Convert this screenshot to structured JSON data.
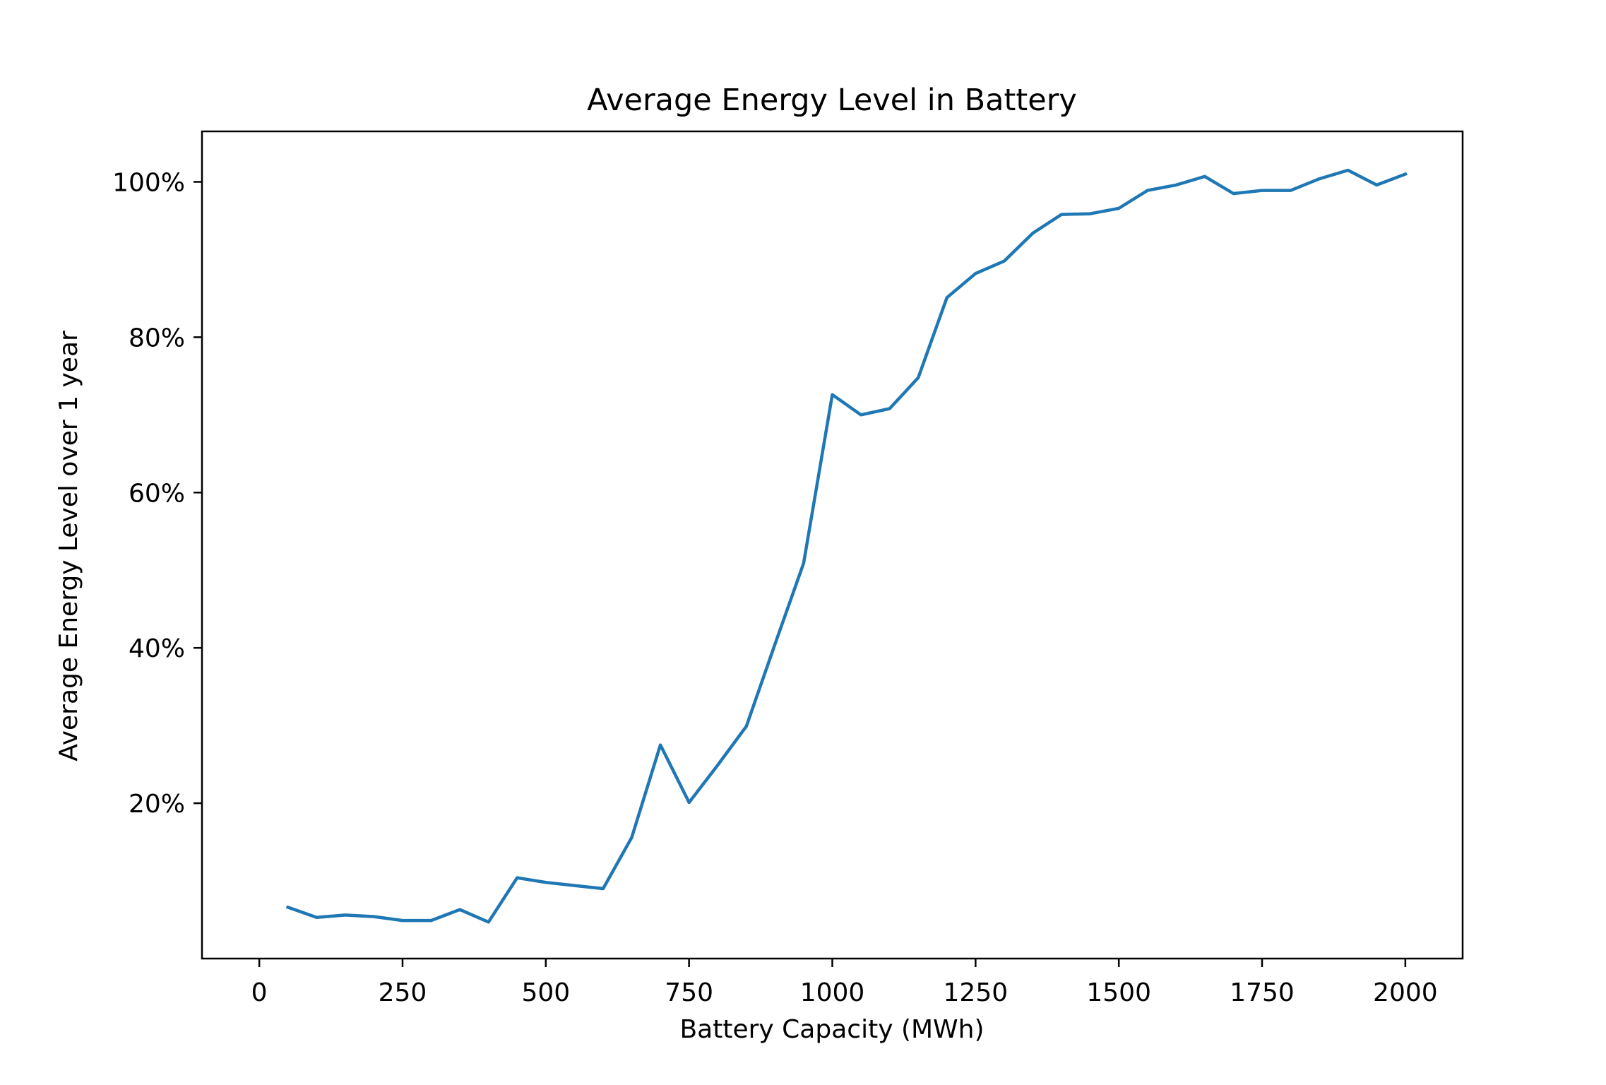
{
  "chart_data": {
    "type": "line",
    "title": "Average Energy Level in Battery",
    "xlabel": "Battery Capacity (MWh)",
    "ylabel": "Average Energy Level over 1 year",
    "xlim": [
      -100,
      2100
    ],
    "ylim": [
      0,
      106.5
    ],
    "x_ticks": [
      0,
      250,
      500,
      750,
      1000,
      1250,
      1500,
      1750,
      2000
    ],
    "x_tick_labels": [
      "0",
      "250",
      "500",
      "750",
      "1000",
      "1250",
      "1500",
      "1750",
      "2000"
    ],
    "y_ticks": [
      20,
      40,
      60,
      80,
      100
    ],
    "y_tick_labels": [
      "20%",
      "40%",
      "60%",
      "80%",
      "100%"
    ],
    "grid": false,
    "line_color": "#1f77b4",
    "series": [
      {
        "x": [
          50,
          100,
          150,
          200,
          250,
          300,
          350,
          400,
          450,
          500,
          550,
          600,
          650,
          700,
          750,
          800,
          850,
          900,
          950,
          1000,
          1050,
          1100,
          1150,
          1200,
          1250,
          1300,
          1350,
          1400,
          1450,
          1500,
          1550,
          1600,
          1650,
          1700,
          1750,
          1800,
          1850,
          1900,
          1950,
          2000
        ],
        "values": [
          6.6,
          5.3,
          5.6,
          5.4,
          4.9,
          4.9,
          6.3,
          4.7,
          10.4,
          9.8,
          9.4,
          9.0,
          15.6,
          27.5,
          20.1,
          24.9,
          29.9,
          40.5,
          50.9,
          72.6,
          70.0,
          70.8,
          74.8,
          85.1,
          88.2,
          89.8,
          93.4,
          95.8,
          95.9,
          96.6,
          98.9,
          99.6,
          100.7,
          98.5,
          98.9,
          98.9,
          100.4,
          101.5,
          99.6,
          101.0
        ]
      }
    ]
  }
}
